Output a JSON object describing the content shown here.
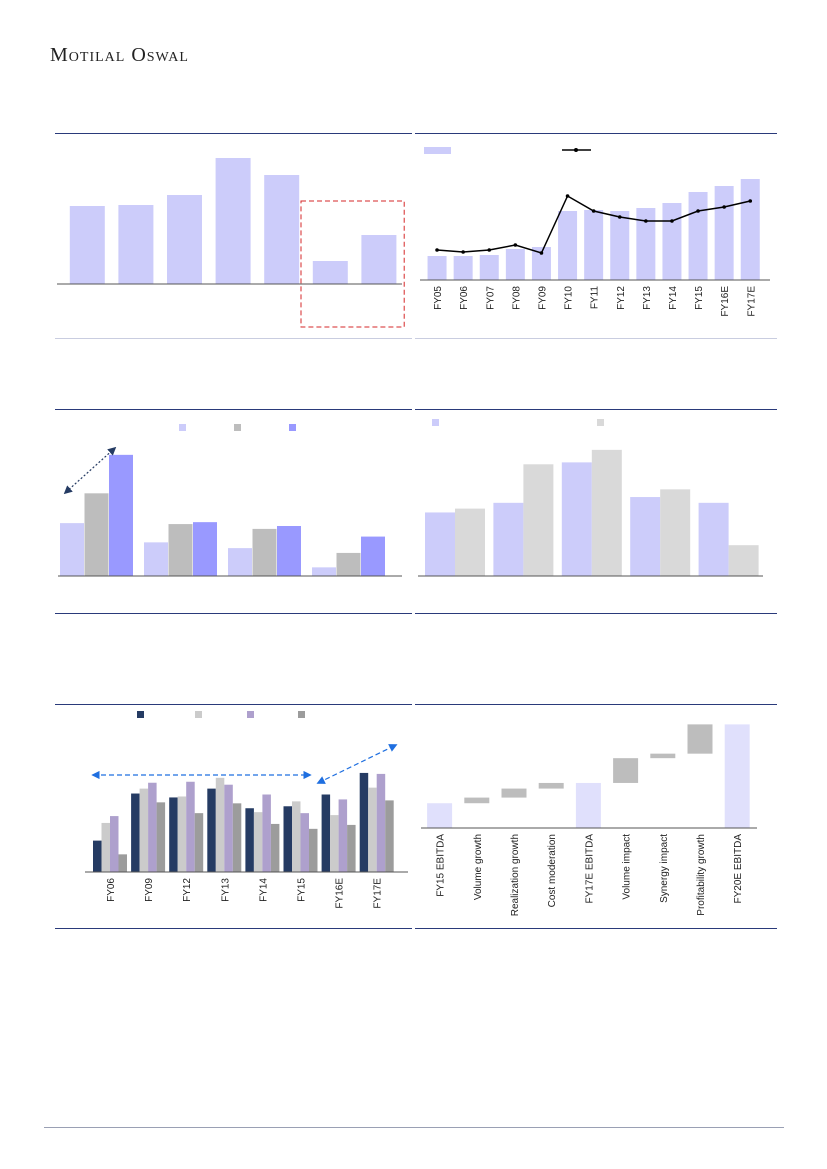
{
  "header": {
    "brand": "Motilal Oswal"
  },
  "chart_data": [
    {
      "id": "c1",
      "type": "bar",
      "values": [
        78,
        79,
        89,
        126,
        109,
        23,
        49
      ],
      "highlight_last": 2,
      "ylim": [
        0,
        130
      ],
      "colors": {
        "bar": "#ccccfa",
        "highlight_box": "#d62728"
      }
    },
    {
      "id": "c2",
      "type": "bar+line",
      "categories": [
        "FY05",
        "FY06",
        "FY07",
        "FY08",
        "FY09",
        "FY10",
        "FY11",
        "FY12",
        "FY13",
        "FY14",
        "FY15",
        "FY16E",
        "FY17E"
      ],
      "bars": [
        24,
        24,
        25,
        31,
        33,
        69,
        70,
        69,
        72,
        77,
        88,
        94,
        101
      ],
      "line": [
        30,
        28,
        30,
        35,
        27,
        84,
        69,
        63,
        59,
        59,
        69,
        73,
        79
      ],
      "ylim": [
        0,
        110
      ],
      "colors": {
        "bar": "#ccccfa",
        "line": "#000000"
      }
    },
    {
      "id": "c3",
      "type": "bar",
      "groups": 4,
      "series": [
        {
          "values": [
            55,
            35,
            29,
            9
          ],
          "color": "#ccccfa"
        },
        {
          "values": [
            86,
            54,
            49,
            24
          ],
          "color": "#bdbdbd"
        },
        {
          "values": [
            126,
            56,
            52,
            41
          ],
          "color": "#9999ff"
        }
      ],
      "ylim": [
        0,
        130
      ]
    },
    {
      "id": "c4",
      "type": "bar",
      "groups": 5,
      "series": [
        {
          "values": [
            66,
            76,
            118,
            82,
            76
          ],
          "color": "#ccccfa"
        },
        {
          "values": [
            70,
            116,
            131,
            90,
            32
          ],
          "color": "#d9d9d9"
        }
      ],
      "ylim": [
        0,
        135
      ]
    },
    {
      "id": "c5",
      "type": "bar",
      "categories": [
        "FY06",
        "FY09",
        "FY12",
        "FY13",
        "FY14",
        "FY15",
        "FY16E",
        "FY17E"
      ],
      "series": [
        {
          "values": [
            32,
            80,
            76,
            85,
            65,
            67,
            79,
            101
          ],
          "color": "#253b63"
        },
        {
          "values": [
            50,
            85,
            77,
            96,
            61,
            72,
            58,
            86
          ],
          "color": "#cbcbcb"
        },
        {
          "values": [
            57,
            91,
            92,
            89,
            79,
            60,
            74,
            100
          ],
          "color": "#aea0cd"
        },
        {
          "values": [
            18,
            71,
            60,
            70,
            49,
            44,
            48,
            73
          ],
          "color": "#9c9c9c"
        }
      ],
      "ylim": [
        0,
        105
      ]
    },
    {
      "id": "c6",
      "type": "waterfall",
      "categories": [
        "FY15 EBITDA",
        "Volume growth",
        "Realization growth",
        "Cost moderation",
        "FY17E EBITDA",
        "Volume impact",
        "Synergy impact",
        "Profitability growth",
        "FY20E EBITDA"
      ],
      "steps": [
        {
          "kind": "total",
          "value": 22
        },
        {
          "kind": "delta",
          "value": 5
        },
        {
          "kind": "delta",
          "value": 8
        },
        {
          "kind": "delta",
          "value": 5
        },
        {
          "kind": "total",
          "value": 40
        },
        {
          "kind": "delta",
          "value": 22
        },
        {
          "kind": "delta",
          "value": 4
        },
        {
          "kind": "delta",
          "value": 26
        },
        {
          "kind": "total",
          "value": 92
        }
      ],
      "ylim": [
        0,
        95
      ],
      "colors": {
        "total": "#e0e0fc",
        "delta": "#bdbdbd"
      }
    }
  ]
}
